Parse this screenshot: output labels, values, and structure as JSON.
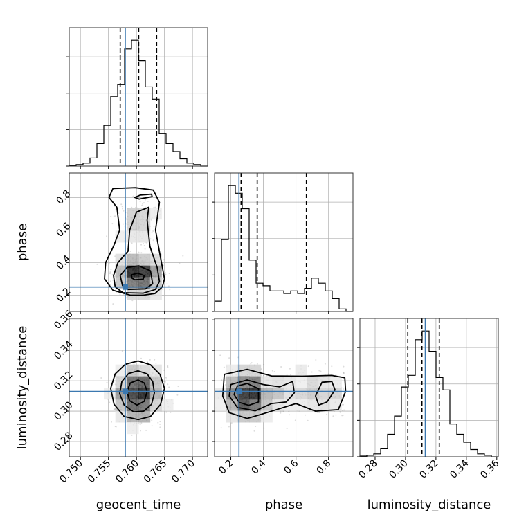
{
  "chart_data": {
    "type": "corner",
    "parameters": [
      "geocent_time",
      "phase",
      "luminosity_distance"
    ],
    "injection": {
      "geocent_time": 0.758,
      "phase": 0.25,
      "luminosity_distance": 0.313
    },
    "colors": {
      "truth": "#3b78b0",
      "hist": "#000000",
      "grid": "#b0b0b0",
      "scatter": "#777777"
    },
    "histograms": [
      {
        "name": "geocent_time",
        "range": [
          0.748,
          0.7727
        ],
        "bins": 20,
        "counts": [
          1,
          2,
          4,
          11,
          31,
          56,
          96,
          112,
          161,
          173,
          145,
          109,
          92,
          45,
          31,
          20,
          10,
          4,
          2,
          0
        ],
        "quantiles": [
          0.7571,
          0.7604,
          0.7636
        ],
        "tick_values": [
          0.75,
          0.755,
          0.76,
          0.765,
          0.77
        ],
        "tick_labels": [
          "0.750",
          "0.755",
          "0.760",
          "0.765",
          "0.770"
        ]
      },
      {
        "name": "phase",
        "range": [
          0.1,
          0.95
        ],
        "bins": 20,
        "counts": [
          4,
          28,
          49,
          46,
          40,
          20,
          11,
          10,
          8,
          8,
          7,
          8,
          7,
          9,
          13,
          11,
          8,
          5,
          1,
          0
        ],
        "quantiles": [
          0.263,
          0.362,
          0.664
        ],
        "tick_values": [
          0.2,
          0.4,
          0.6,
          0.8
        ],
        "tick_labels": [
          "0.2",
          "0.4",
          "0.6",
          "0.8"
        ]
      },
      {
        "name": "luminosity_distance",
        "range": [
          0.27,
          0.361
        ],
        "bins": 20,
        "counts": [
          1,
          2,
          4,
          11,
          31,
          56,
          96,
          112,
          161,
          173,
          145,
          109,
          92,
          45,
          31,
          20,
          10,
          4,
          2,
          0
        ],
        "quantiles": [
          0.3015,
          0.3108,
          0.3222
        ],
        "tick_values": [
          0.28,
          0.3,
          0.32,
          0.34,
          0.36
        ],
        "tick_labels": [
          "0.28",
          "0.30",
          "0.32",
          "0.34",
          "0.36"
        ]
      }
    ],
    "pair_ticks": {
      "phase_y": {
        "values": [
          0.2,
          0.4,
          0.6,
          0.8
        ],
        "labels": [
          "0.2",
          "0.4",
          "0.6",
          "0.8"
        ]
      },
      "distance_y": {
        "values": [
          0.28,
          0.3,
          0.32,
          0.34,
          0.36
        ],
        "labels": [
          "0.28",
          "0.30",
          "0.32",
          "0.34",
          "0.36"
        ]
      }
    },
    "axis_labels": {
      "x": [
        "geocent_time",
        "phase",
        "luminosity_distance"
      ],
      "y": [
        "phase",
        "luminosity_distance"
      ]
    },
    "contours": {
      "geocent_time|phase": [
        [
          [
            0.7589,
            0.2
          ],
          [
            0.7612,
            0.2
          ],
          [
            0.7633,
            0.21
          ],
          [
            0.7646,
            0.25
          ],
          [
            0.765,
            0.3
          ],
          [
            0.7643,
            0.43
          ],
          [
            0.7634,
            0.6
          ],
          [
            0.7641,
            0.77
          ],
          [
            0.763,
            0.845
          ],
          [
            0.7598,
            0.86
          ],
          [
            0.7558,
            0.855
          ],
          [
            0.7551,
            0.8
          ],
          [
            0.7565,
            0.74
          ],
          [
            0.757,
            0.6
          ],
          [
            0.7559,
            0.5
          ],
          [
            0.7545,
            0.4
          ],
          [
            0.7543,
            0.3
          ],
          [
            0.7558,
            0.23
          ]
        ],
        [
          [
            0.7576,
            0.215
          ],
          [
            0.7612,
            0.212
          ],
          [
            0.7634,
            0.235
          ],
          [
            0.7641,
            0.285
          ],
          [
            0.7637,
            0.37
          ],
          [
            0.7624,
            0.5
          ],
          [
            0.7619,
            0.66
          ],
          [
            0.7622,
            0.74
          ],
          [
            0.76,
            0.71
          ],
          [
            0.7588,
            0.6
          ],
          [
            0.7585,
            0.47
          ],
          [
            0.7567,
            0.4
          ],
          [
            0.7559,
            0.32
          ],
          [
            0.7562,
            0.25
          ]
        ],
        [
          [
            0.7605,
            0.79
          ],
          [
            0.7628,
            0.805
          ],
          [
            0.7627,
            0.82
          ],
          [
            0.7607,
            0.815
          ],
          [
            0.7597,
            0.8
          ]
        ],
        [
          [
            0.7584,
            0.235
          ],
          [
            0.7616,
            0.238
          ],
          [
            0.7629,
            0.27
          ],
          [
            0.7625,
            0.35
          ],
          [
            0.7604,
            0.38
          ],
          [
            0.7583,
            0.37
          ],
          [
            0.7571,
            0.32
          ],
          [
            0.7575,
            0.26
          ]
        ],
        [
          [
            0.7597,
            0.295
          ],
          [
            0.7612,
            0.298
          ],
          [
            0.7614,
            0.32
          ],
          [
            0.7602,
            0.335
          ],
          [
            0.7591,
            0.325
          ],
          [
            0.7592,
            0.305
          ]
        ]
      ],
      "geocent_time|luminosity_distance": [
        [
          [
            0.7603,
            0.333
          ],
          [
            0.7625,
            0.3305
          ],
          [
            0.7642,
            0.3242
          ],
          [
            0.765,
            0.315
          ],
          [
            0.7643,
            0.3045
          ],
          [
            0.7625,
            0.2965
          ],
          [
            0.7603,
            0.2945
          ],
          [
            0.7578,
            0.2965
          ],
          [
            0.756,
            0.3045
          ],
          [
            0.7554,
            0.315
          ],
          [
            0.7562,
            0.3245
          ],
          [
            0.758,
            0.3308
          ]
        ],
        [
          [
            0.7603,
            0.3265
          ],
          [
            0.7619,
            0.3245
          ],
          [
            0.7629,
            0.3195
          ],
          [
            0.7632,
            0.312
          ],
          [
            0.7627,
            0.3045
          ],
          [
            0.7613,
            0.3
          ],
          [
            0.7595,
            0.2995
          ],
          [
            0.7578,
            0.304
          ],
          [
            0.757,
            0.3115
          ],
          [
            0.7574,
            0.3195
          ],
          [
            0.7586,
            0.3248
          ]
        ],
        [
          [
            0.7603,
            0.3205
          ],
          [
            0.7614,
            0.3185
          ],
          [
            0.7619,
            0.313
          ],
          [
            0.7614,
            0.3065
          ],
          [
            0.7601,
            0.304
          ],
          [
            0.7588,
            0.3068
          ],
          [
            0.7583,
            0.313
          ],
          [
            0.7589,
            0.3185
          ]
        ]
      ],
      "phase|luminosity_distance": [
        [
          [
            0.16,
            0.3242
          ],
          [
            0.3,
            0.3275
          ],
          [
            0.45,
            0.3232
          ],
          [
            0.64,
            0.323
          ],
          [
            0.82,
            0.3235
          ],
          [
            0.9,
            0.322
          ],
          [
            0.905,
            0.313
          ],
          [
            0.86,
            0.301
          ],
          [
            0.72,
            0.3
          ],
          [
            0.6,
            0.305
          ],
          [
            0.42,
            0.299
          ],
          [
            0.3,
            0.2952
          ],
          [
            0.19,
            0.299
          ],
          [
            0.15,
            0.31
          ]
        ],
        [
          [
            0.2,
            0.3175
          ],
          [
            0.3,
            0.3205
          ],
          [
            0.4,
            0.3175
          ],
          [
            0.5,
            0.316
          ],
          [
            0.58,
            0.3195
          ],
          [
            0.59,
            0.312
          ],
          [
            0.54,
            0.306
          ],
          [
            0.45,
            0.305
          ],
          [
            0.35,
            0.3002
          ],
          [
            0.24,
            0.3025
          ],
          [
            0.19,
            0.31
          ]
        ],
        [
          [
            0.24,
            0.3165
          ],
          [
            0.3,
            0.3182
          ],
          [
            0.37,
            0.3148
          ],
          [
            0.37,
            0.306
          ],
          [
            0.31,
            0.3038
          ],
          [
            0.25,
            0.3058
          ],
          [
            0.22,
            0.311
          ]
        ],
        [
          [
            0.76,
            0.319
          ],
          [
            0.82,
            0.3195
          ],
          [
            0.84,
            0.314
          ],
          [
            0.79,
            0.306
          ],
          [
            0.74,
            0.304
          ],
          [
            0.72,
            0.31
          ]
        ]
      ]
    }
  }
}
